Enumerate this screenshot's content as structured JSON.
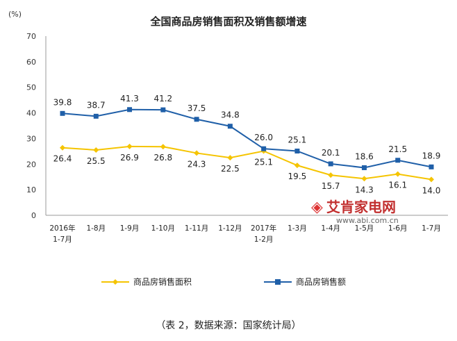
{
  "chart_data": {
    "type": "line",
    "title": "全国商品房销售面积及销售额增速",
    "ylabel": "(%)",
    "ylim": [
      0,
      70
    ],
    "yticks": [
      0,
      10,
      20,
      30,
      40,
      50,
      60,
      70
    ],
    "grid": false,
    "legend_position": "bottom",
    "categories": [
      "2016年 1-7月",
      "1-8月",
      "1-9月",
      "1-10月",
      "1-11月",
      "1-12月",
      "2017年 1-2月",
      "1-3月",
      "1-4月",
      "1-5月",
      "1-6月",
      "1-7月"
    ],
    "series": [
      {
        "name": "商品房销售面积",
        "color": "#f5c400",
        "marker": "diamond",
        "values": [
          26.4,
          25.5,
          26.9,
          26.8,
          24.3,
          22.5,
          25.1,
          19.5,
          15.7,
          14.3,
          16.1,
          14.0
        ],
        "labels": [
          "26.4",
          "25.5",
          "26.9",
          "26.8",
          "24.3",
          "22.5",
          "25.1",
          "19.5",
          "15.7",
          "14.3",
          "16.1",
          "14.0"
        ]
      },
      {
        "name": "商品房销售额",
        "color": "#1f5fa8",
        "marker": "square",
        "values": [
          39.8,
          38.7,
          41.3,
          41.2,
          37.5,
          34.8,
          26.0,
          25.1,
          20.1,
          18.6,
          21.5,
          18.9
        ],
        "labels": [
          "39.8",
          "38.7",
          "41.3",
          "41.2",
          "37.5",
          "34.8",
          "26.0",
          "25.1",
          "20.1",
          "18.6",
          "21.5",
          "18.9"
        ]
      }
    ]
  },
  "caption": "（表 2，数据来源：国家统计局）",
  "watermark": {
    "name": "艾肯家电网",
    "url": "www.abi.com.cn"
  }
}
